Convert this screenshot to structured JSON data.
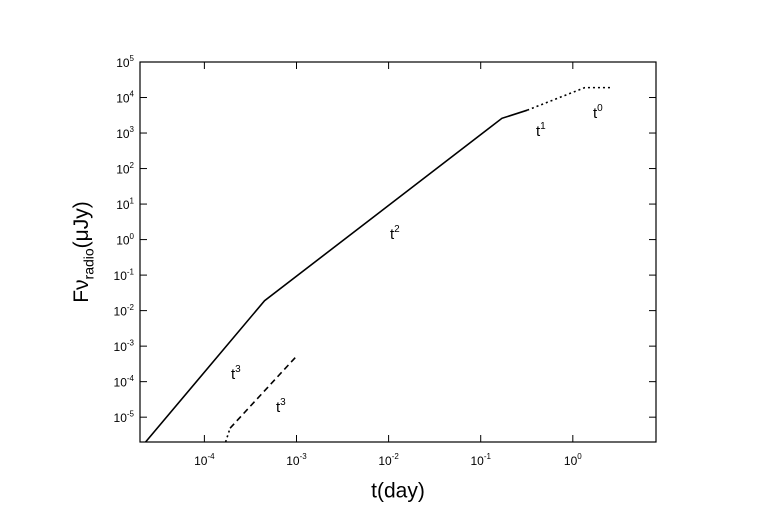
{
  "chart_data": {
    "type": "line",
    "xlabel": "t(day)",
    "ylabel": "Fν_{radio}(μJy)",
    "xscale": "log",
    "yscale": "log",
    "xlim": [
      2e-05,
      8
    ],
    "ylim": [
      2e-06,
      100000
    ],
    "xticks": [
      {
        "value": 0.0001,
        "label": "10^{-4}"
      },
      {
        "value": 0.001,
        "label": "10^{-3}"
      },
      {
        "value": 0.01,
        "label": "10^{-2}"
      },
      {
        "value": 0.1,
        "label": "10^{-1}"
      },
      {
        "value": 1,
        "label": "10^{0}"
      }
    ],
    "yticks": [
      {
        "value": 1e-05,
        "label": "10^{-5}"
      },
      {
        "value": 0.0001,
        "label": "10^{-4}"
      },
      {
        "value": 0.001,
        "label": "10^{-3}"
      },
      {
        "value": 0.01,
        "label": "10^{-2}"
      },
      {
        "value": 0.1,
        "label": "10^{-1}"
      },
      {
        "value": 1,
        "label": "10^{0}"
      },
      {
        "value": 10,
        "label": "10^{1}"
      },
      {
        "value": 100,
        "label": "10^{2}"
      },
      {
        "value": 1000,
        "label": "10^{3}"
      },
      {
        "value": 10000,
        "label": "10^{4}"
      },
      {
        "value": 100000,
        "label": "10^{5}"
      }
    ],
    "series": [
      {
        "color": "#000000",
        "line_style": "solid",
        "x": [
          2.3e-05,
          0.00045,
          0.17,
          0.32
        ],
        "values": [
          2e-06,
          0.019,
          2600,
          4400
        ]
      },
      {
        "color": "#000000",
        "line_style": "dotted",
        "x": [
          0.32,
          1.35,
          2.7
        ],
        "values": [
          4400,
          19000,
          19000
        ]
      },
      {
        "color": "#000000",
        "line_style": "dotted",
        "x": [
          0.00017,
          0.00019
        ],
        "values": [
          2e-06,
          4.9e-06
        ]
      },
      {
        "color": "#000000",
        "line_style": "dashed",
        "x": [
          0.00019,
          0.001
        ],
        "values": [
          4.9e-06,
          0.00052
        ]
      }
    ],
    "annotations": [
      "t^{3}",
      "t^{3}",
      "t^{2}",
      "t^{1}",
      "t^{0}"
    ]
  }
}
